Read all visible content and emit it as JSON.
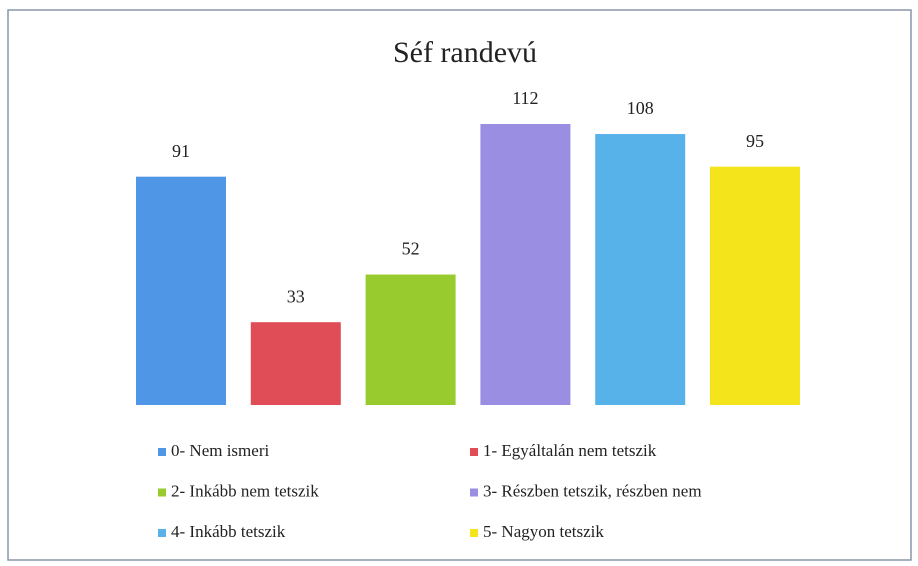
{
  "chart_data": {
    "type": "bar",
    "title": "Séf randevú",
    "categories": [
      "0- Nem ismeri",
      "1- Egyáltalán nem tetszik",
      "2- Inkább nem tetszik",
      "3- Részben tetszik, részben nem",
      "4- Inkább tetszik",
      "5- Nagyon tetszik"
    ],
    "values": [
      91,
      33,
      52,
      112,
      108,
      95
    ],
    "colors": [
      "#4f97e6",
      "#e04d57",
      "#98cc2e",
      "#9a8ee2",
      "#58b2ea",
      "#f4e41c"
    ],
    "legend": "bottom"
  }
}
